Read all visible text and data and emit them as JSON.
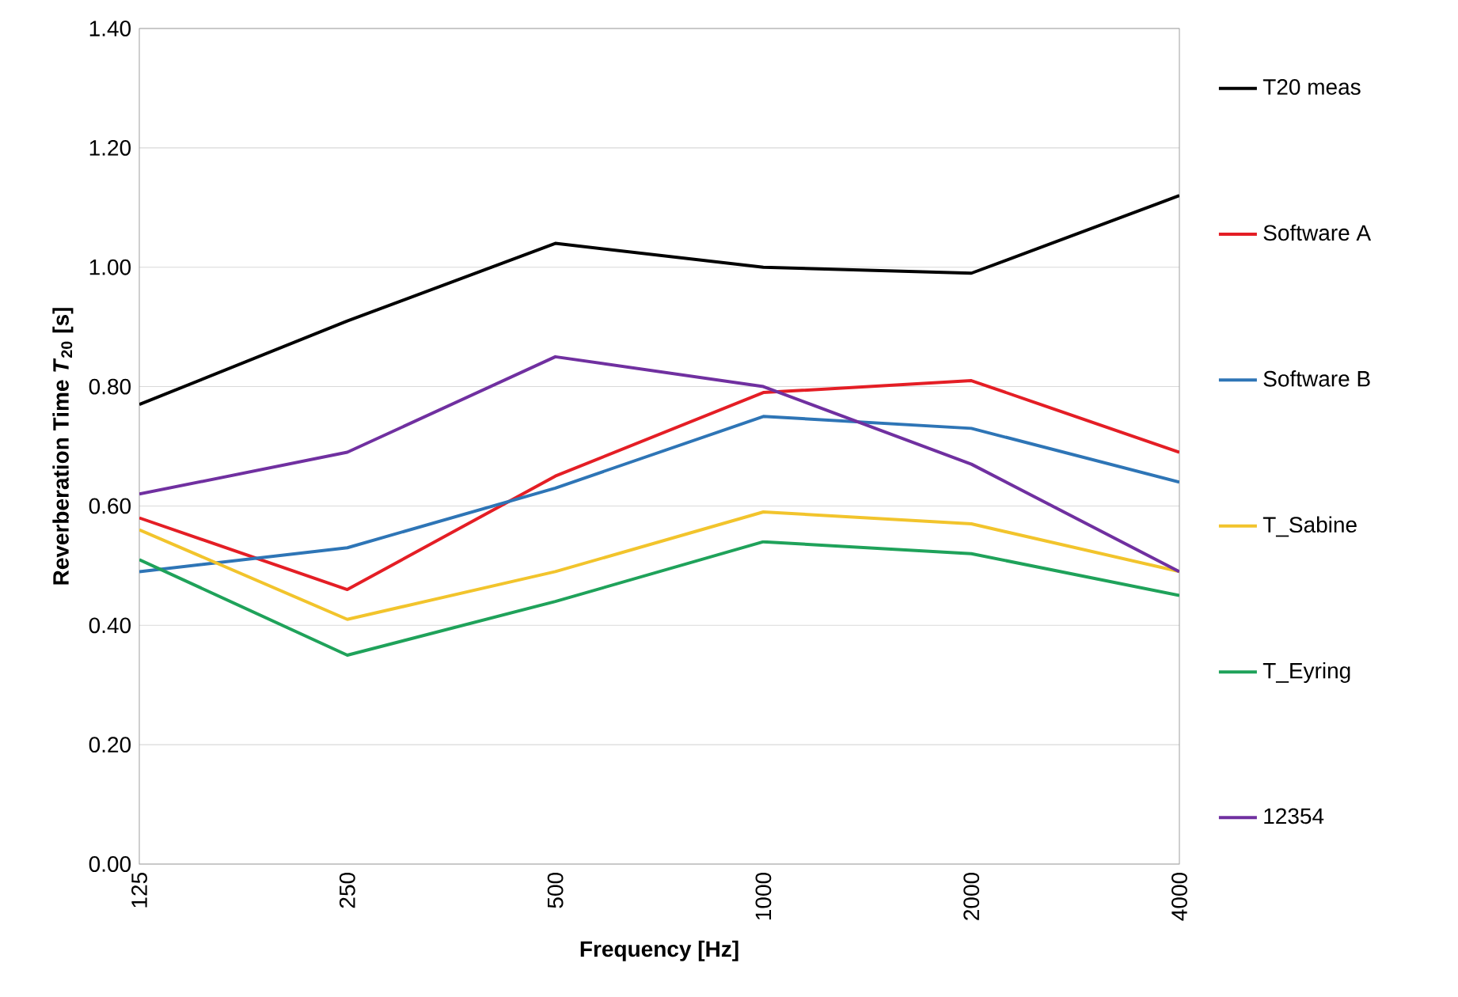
{
  "chart_data": {
    "type": "line",
    "xlabel": "Frequency [Hz]",
    "ylabel": "Reverberation Time *T*$_{20}$ [s]",
    "categories": [
      "125",
      "250",
      "500",
      "1000",
      "2000",
      "4000"
    ],
    "series": [
      {
        "name": "T20 meas",
        "color": "#000000",
        "values": [
          0.77,
          0.91,
          1.04,
          1.0,
          0.99,
          1.12
        ]
      },
      {
        "name": "Software A",
        "color": "#e41e25",
        "values": [
          0.58,
          0.46,
          0.65,
          0.79,
          0.81,
          0.69
        ]
      },
      {
        "name": "Software B",
        "color": "#2e75b6",
        "values": [
          0.49,
          0.53,
          0.63,
          0.75,
          0.73,
          0.64
        ]
      },
      {
        "name": "T_Sabine",
        "color": "#f2c42c",
        "values": [
          0.56,
          0.41,
          0.49,
          0.59,
          0.57,
          0.49
        ]
      },
      {
        "name": "T_Eyring",
        "color": "#1fa25a",
        "values": [
          0.51,
          0.35,
          0.44,
          0.54,
          0.52,
          0.45
        ]
      },
      {
        "name": "12354",
        "color": "#7030a0",
        "values": [
          0.62,
          0.69,
          0.85,
          0.8,
          0.67,
          0.49
        ]
      }
    ],
    "ylim": [
      0,
      1.4
    ],
    "yticks": [
      {
        "value": 0,
        "label": "0.00"
      },
      {
        "value": 0.2,
        "label": "0.20"
      },
      {
        "value": 0.4,
        "label": "0.40"
      },
      {
        "value": 0.6,
        "label": "0.60"
      },
      {
        "value": 0.8,
        "label": "0.80"
      },
      {
        "value": 1.0,
        "label": "1.00"
      },
      {
        "value": 1.2,
        "label": "1.20"
      },
      {
        "value": 1.4,
        "label": "1.40"
      }
    ],
    "grid": "y",
    "legend": "right",
    "marker": "none",
    "line_style": "solid"
  }
}
